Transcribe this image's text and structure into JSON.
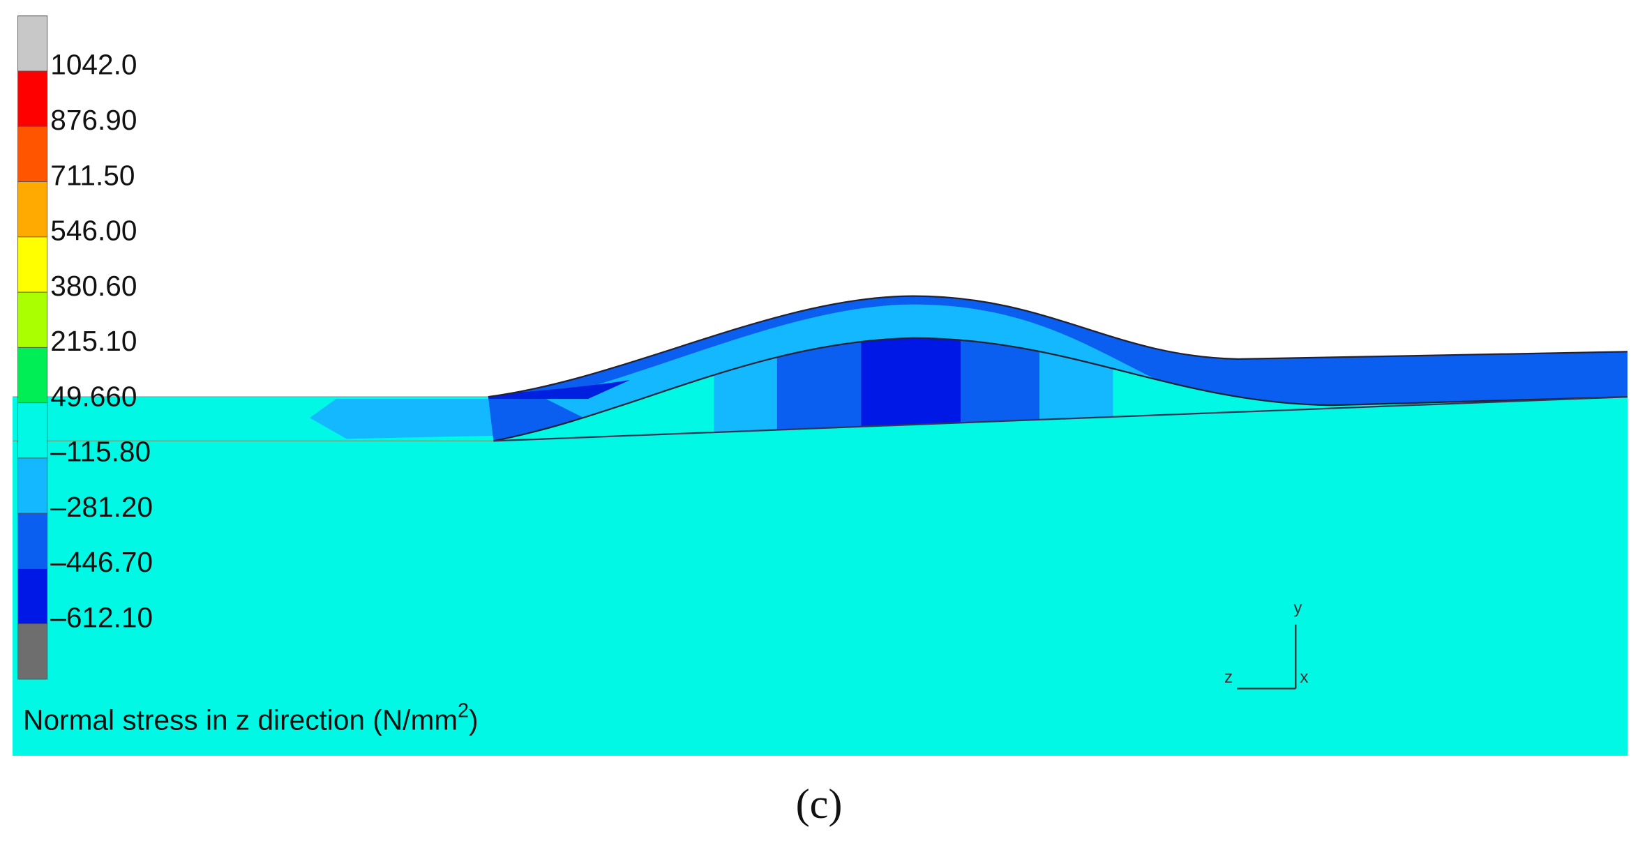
{
  "legend": {
    "labels": [
      "1042.0",
      "876.90",
      "711.50",
      "546.00",
      "380.60",
      "215.10",
      "49.660",
      "–115.80",
      "–281.20",
      "–446.70",
      "–612.10"
    ]
  },
  "quantity": {
    "text": "Normal stress in z direction (N/mm",
    "superscript": "2",
    "closing": ")"
  },
  "triad": {
    "y": "y",
    "z": "z",
    "x": "x"
  },
  "panel_label": "(c)"
}
